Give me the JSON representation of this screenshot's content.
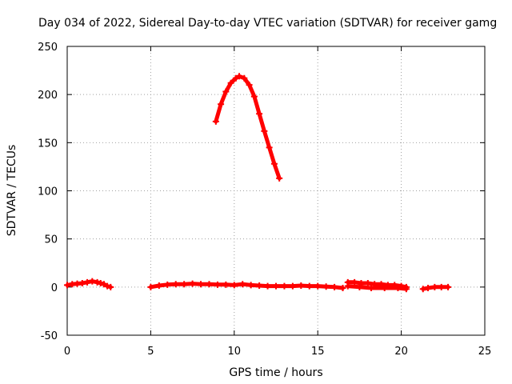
{
  "chart_data": {
    "type": "scatter",
    "title": "Day 034 of 2022, Sidereal Day-to-day VTEC variation (SDTVAR) for receiver gamg",
    "xlabel": "GPS time / hours",
    "ylabel": "SDTVAR / TECUs",
    "xlim": [
      0,
      25
    ],
    "ylim": [
      -50,
      250
    ],
    "grid": true,
    "x_ticks": [
      0,
      5,
      10,
      15,
      20,
      25
    ],
    "y_ticks": [
      -50,
      0,
      50,
      100,
      150,
      200,
      250
    ],
    "series_color": "#ff0000",
    "series": [
      {
        "name": "segment-1",
        "points": [
          [
            0.0,
            2
          ],
          [
            0.3,
            3
          ],
          [
            0.6,
            3.5
          ],
          [
            0.9,
            4
          ],
          [
            1.2,
            5
          ],
          [
            1.5,
            6
          ],
          [
            1.8,
            5
          ],
          [
            2.0,
            4
          ],
          [
            2.2,
            3
          ],
          [
            2.4,
            1
          ],
          [
            2.6,
            0
          ]
        ]
      },
      {
        "name": "segment-2",
        "points": [
          [
            5.0,
            0
          ],
          [
            5.5,
            1.5
          ],
          [
            6.0,
            2.5
          ],
          [
            6.5,
            3
          ],
          [
            7.0,
            3
          ],
          [
            7.5,
            3.5
          ],
          [
            8.0,
            3
          ],
          [
            8.5,
            3
          ],
          [
            9.0,
            2.5
          ],
          [
            9.5,
            2.5
          ],
          [
            10.0,
            2
          ],
          [
            10.5,
            3
          ],
          [
            11.0,
            2
          ],
          [
            11.5,
            1.5
          ],
          [
            12.0,
            1
          ],
          [
            12.5,
            1
          ],
          [
            13.0,
            1
          ],
          [
            13.5,
            1
          ],
          [
            14.0,
            1.5
          ],
          [
            14.5,
            1
          ],
          [
            15.0,
            1
          ],
          [
            15.5,
            0.5
          ],
          [
            16.0,
            0
          ],
          [
            16.5,
            -1
          ]
        ]
      },
      {
        "name": "segment-3",
        "points": [
          [
            8.9,
            172
          ],
          [
            9.2,
            190
          ],
          [
            9.5,
            203
          ],
          [
            9.8,
            212
          ],
          [
            10.1,
            217
          ],
          [
            10.3,
            219
          ],
          [
            10.6,
            217
          ],
          [
            10.9,
            210
          ],
          [
            11.2,
            198
          ],
          [
            11.5,
            180
          ],
          [
            11.8,
            162
          ],
          [
            12.1,
            145
          ],
          [
            12.4,
            128
          ],
          [
            12.7,
            113
          ]
        ]
      },
      {
        "name": "segment-4",
        "points": [
          [
            16.8,
            5
          ],
          [
            17.2,
            5
          ],
          [
            17.6,
            4
          ],
          [
            18.0,
            4
          ],
          [
            18.4,
            3
          ],
          [
            18.8,
            3
          ],
          [
            19.2,
            2
          ],
          [
            19.6,
            2
          ],
          [
            20.0,
            1
          ],
          [
            20.3,
            0
          ]
        ]
      },
      {
        "name": "segment-5",
        "points": [
          [
            16.8,
            1
          ],
          [
            17.5,
            0
          ],
          [
            18.2,
            -1
          ],
          [
            19.0,
            -1
          ],
          [
            19.8,
            -1
          ],
          [
            20.3,
            -2
          ]
        ]
      },
      {
        "name": "segment-6",
        "points": [
          [
            21.3,
            -2
          ],
          [
            21.6,
            -1
          ],
          [
            22.0,
            0
          ],
          [
            22.4,
            0
          ],
          [
            22.8,
            0
          ]
        ]
      }
    ]
  }
}
